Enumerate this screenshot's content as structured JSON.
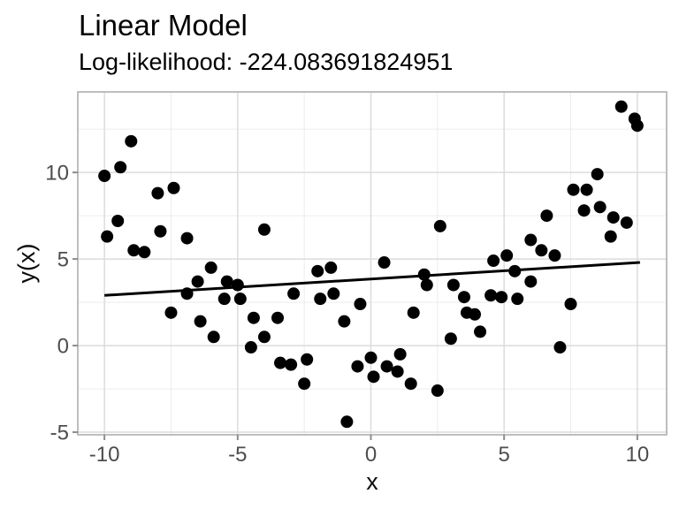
{
  "header": {
    "title": "Linear Model",
    "subtitle": "Log-likelihood: -224.083691824951"
  },
  "chart_data": {
    "type": "scatter",
    "title": "Linear Model",
    "subtitle": "Log-likelihood: -224.083691824951",
    "xlabel": "x",
    "ylabel": "y(x)",
    "x_ticks": [
      -10,
      -5,
      0,
      5,
      10
    ],
    "y_ticks": [
      -5,
      0,
      5,
      10
    ],
    "x_minor_gridlines": [
      -7.5,
      -2.5,
      2.5,
      7.5
    ],
    "y_minor_gridlines": [
      -2.5,
      2.5,
      7.5,
      12.5
    ],
    "xlim": [
      -11.0,
      11.1
    ],
    "ylim": [
      -5.15,
      14.65
    ],
    "grid": true,
    "legend": "none",
    "point_color": "#000000",
    "line_color": "#000000",
    "grid_major_color": "#dcdcdc",
    "grid_minor_color": "#ececec",
    "panel_border_color": "#aeaeae",
    "tick_color": "#8c8c8c",
    "tick_label_color": "#4d4d4d",
    "fit_line": {
      "x1": -10.0,
      "y1": 2.9,
      "x2": 10.1,
      "y2": 4.8
    },
    "points": [
      [
        -10.0,
        9.8
      ],
      [
        -9.9,
        6.3
      ],
      [
        -9.5,
        7.2
      ],
      [
        -9.4,
        10.3
      ],
      [
        -9.0,
        11.8
      ],
      [
        -8.9,
        5.5
      ],
      [
        -8.5,
        5.4
      ],
      [
        -8.0,
        8.8
      ],
      [
        -7.9,
        6.6
      ],
      [
        -7.5,
        1.9
      ],
      [
        -7.4,
        9.1
      ],
      [
        -6.9,
        6.2
      ],
      [
        -6.9,
        3.0
      ],
      [
        -6.5,
        3.7
      ],
      [
        -6.4,
        1.4
      ],
      [
        -6.0,
        4.5
      ],
      [
        -5.9,
        0.5
      ],
      [
        -5.5,
        2.7
      ],
      [
        -5.4,
        3.7
      ],
      [
        -5.0,
        3.5
      ],
      [
        -4.9,
        2.7
      ],
      [
        -4.5,
        -0.1
      ],
      [
        -4.4,
        1.6
      ],
      [
        -4.0,
        6.7
      ],
      [
        -4.0,
        0.5
      ],
      [
        -3.5,
        1.6
      ],
      [
        -3.4,
        -1.0
      ],
      [
        -3.0,
        -1.1
      ],
      [
        -2.9,
        3.0
      ],
      [
        -2.5,
        -2.2
      ],
      [
        -2.4,
        -0.8
      ],
      [
        -2.0,
        4.3
      ],
      [
        -1.9,
        2.7
      ],
      [
        -1.5,
        4.5
      ],
      [
        -1.4,
        3.0
      ],
      [
        -1.0,
        1.4
      ],
      [
        -0.9,
        -4.4
      ],
      [
        -0.5,
        -1.2
      ],
      [
        -0.4,
        2.4
      ],
      [
        0.0,
        -0.7
      ],
      [
        0.1,
        -1.8
      ],
      [
        0.5,
        4.8
      ],
      [
        0.6,
        -1.2
      ],
      [
        1.0,
        -1.5
      ],
      [
        1.1,
        -0.5
      ],
      [
        1.5,
        -2.2
      ],
      [
        1.6,
        1.9
      ],
      [
        2.0,
        4.1
      ],
      [
        2.1,
        3.5
      ],
      [
        2.5,
        -2.6
      ],
      [
        2.6,
        6.9
      ],
      [
        3.0,
        0.4
      ],
      [
        3.1,
        3.5
      ],
      [
        3.5,
        2.8
      ],
      [
        3.6,
        1.9
      ],
      [
        3.9,
        1.8
      ],
      [
        4.1,
        0.8
      ],
      [
        4.5,
        2.9
      ],
      [
        4.6,
        4.9
      ],
      [
        4.9,
        2.8
      ],
      [
        5.1,
        5.2
      ],
      [
        5.4,
        4.3
      ],
      [
        5.5,
        2.7
      ],
      [
        6.0,
        6.1
      ],
      [
        6.0,
        3.7
      ],
      [
        6.4,
        5.5
      ],
      [
        6.6,
        7.5
      ],
      [
        6.9,
        5.2
      ],
      [
        7.1,
        -0.1
      ],
      [
        7.5,
        2.4
      ],
      [
        7.6,
        9.0
      ],
      [
        8.0,
        7.8
      ],
      [
        8.1,
        9.0
      ],
      [
        8.5,
        9.9
      ],
      [
        8.6,
        8.0
      ],
      [
        9.0,
        6.3
      ],
      [
        9.1,
        7.4
      ],
      [
        9.4,
        13.8
      ],
      [
        9.6,
        7.1
      ],
      [
        9.9,
        13.1
      ],
      [
        10.0,
        12.7
      ]
    ]
  }
}
